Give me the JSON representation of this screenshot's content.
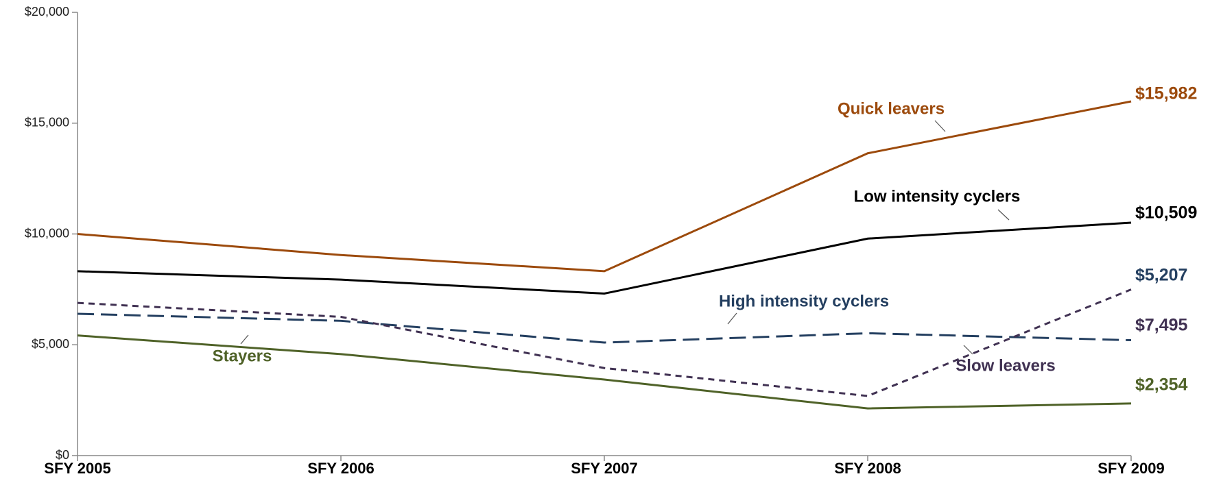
{
  "chart_data": {
    "type": "line",
    "categories": [
      "SFY 2005",
      "SFY 2006",
      "SFY 2007",
      "SFY 2008",
      "SFY 2009"
    ],
    "ylim": [
      0,
      20000
    ],
    "yticks": [
      {
        "value": 0,
        "label": "$0"
      },
      {
        "value": 5000,
        "label": "$5,000"
      },
      {
        "value": 10000,
        "label": "$10,000"
      },
      {
        "value": 15000,
        "label": "$15,000"
      },
      {
        "value": 20000,
        "label": "$20,000"
      }
    ],
    "series": [
      {
        "name": "Quick leavers",
        "color": "#9c4a0c",
        "dash": "solid",
        "values": [
          10000,
          9050,
          8320,
          13640,
          15982
        ],
        "value_labels": [
          null,
          null,
          null,
          null,
          "$15,982"
        ]
      },
      {
        "name": "Low intensity cyclers",
        "color": "#000000",
        "dash": "solid",
        "values": [
          8320,
          7940,
          7310,
          9790,
          10509
        ],
        "value_labels": [
          null,
          null,
          null,
          null,
          "$10,509"
        ]
      },
      {
        "name": "High intensity cyclers",
        "color": "#243f60",
        "dash": "long",
        "values": [
          6400,
          6080,
          5100,
          5520,
          5207
        ],
        "value_labels": [
          null,
          null,
          null,
          null,
          "$5,207"
        ]
      },
      {
        "name": "Slow leavers",
        "color": "#403152",
        "dash": "short",
        "values": [
          6890,
          6260,
          3950,
          2690,
          7495
        ],
        "value_labels": [
          null,
          null,
          null,
          null,
          "$7,495"
        ]
      },
      {
        "name": "Stayers",
        "color": "#4f6228",
        "dash": "solid",
        "values": [
          5420,
          4580,
          3430,
          2130,
          2354
        ],
        "value_labels": [
          null,
          null,
          null,
          null,
          "$2,354"
        ]
      }
    ]
  }
}
